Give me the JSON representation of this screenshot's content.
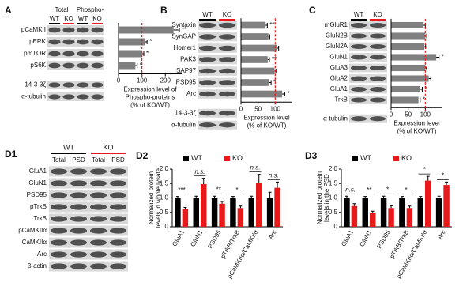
{
  "chart_data": [
    {
      "type": "hbar",
      "panel": "A",
      "headers": [
        "Total",
        "Phospho-"
      ],
      "lanes": [
        "WT",
        "KO",
        "WT",
        "KO"
      ],
      "categories": [
        "pCaMKII",
        "pERK",
        "pmTOR",
        "pS6K"
      ],
      "values": [
        235,
        112,
        100,
        72
      ],
      "errors": [
        25,
        10,
        8,
        8
      ],
      "significance": [
        "**",
        "*",
        "*",
        "*"
      ],
      "loading_controls": [
        "14-3-3ζ",
        "α-tubulin"
      ],
      "xlim": [
        0,
        270
      ],
      "xticks": [
        0,
        100,
        200
      ],
      "reference": 100,
      "color": "#808080",
      "xlabel": [
        "Expression level of",
        "Phospho-proteins",
        "(% of KO/WT)"
      ]
    },
    {
      "type": "hbar",
      "panel": "B",
      "lanes": [
        "WT",
        "KO"
      ],
      "categories": [
        "Syntaxin",
        "SynGAP",
        "Homer1",
        "PAK3",
        "SAP97",
        "PSD95",
        "Arc"
      ],
      "values": [
        72,
        80,
        105,
        78,
        98,
        82,
        120
      ],
      "errors": [
        5,
        4,
        5,
        5,
        4,
        6,
        8
      ],
      "significance": [
        "**",
        null,
        null,
        "**",
        null,
        "*",
        "*"
      ],
      "loading_controls": [
        "14-3-3ζ",
        "α-tubulin"
      ],
      "xlim": [
        0,
        150
      ],
      "xticks": [
        0,
        50,
        100
      ],
      "reference": 100,
      "color": "#808080",
      "xlabel": [
        "Expression level",
        "(% of KO/WT)"
      ]
    },
    {
      "type": "hbar",
      "panel": "C",
      "lanes": [
        "WT",
        "KO"
      ],
      "categories": [
        "mGluR1",
        "GluN2B",
        "GluN2A",
        "GluN1",
        "GluA3",
        "GluA2",
        "GluA1",
        "TrkB"
      ],
      "values": [
        95,
        100,
        97,
        132,
        100,
        110,
        85,
        80
      ],
      "errors": [
        5,
        4,
        4,
        8,
        4,
        6,
        6,
        5
      ],
      "significance": [
        null,
        null,
        null,
        "*",
        null,
        null,
        "*",
        "*"
      ],
      "loading_controls": [
        "α-tubulin"
      ],
      "xlim": [
        0,
        150
      ],
      "xticks": [
        0,
        50,
        100
      ],
      "reference": 100,
      "color": "#808080",
      "xlabel": [
        "Expression level",
        "(% of KO/WT)"
      ]
    },
    {
      "type": "grouped_bar",
      "panel": "D2",
      "ylabel": [
        "Normalized protein",
        "levels in whole lysate"
      ],
      "categories": [
        "GluA1",
        "GluN1",
        "PSD95",
        "pTrkB/TrkB",
        "pCaMKIIα/CaMKIIα",
        "Arc"
      ],
      "series": [
        {
          "name": "WT",
          "color": "#000000",
          "values": [
            1,
            1,
            1,
            1,
            1,
            1
          ],
          "errors": [
            0.05,
            0.06,
            0.06,
            0.05,
            0.06,
            0.2
          ]
        },
        {
          "name": "KO",
          "color": "#e8191b",
          "values": [
            0.62,
            1.48,
            0.8,
            0.65,
            1.52,
            1.35
          ],
          "errors": [
            0.05,
            0.2,
            0.08,
            0.07,
            0.3,
            0.2
          ]
        }
      ],
      "significance": [
        "***",
        "n.s.",
        "**",
        "*",
        "n.s.",
        "n.s."
      ],
      "ylim": [
        0,
        2
      ],
      "yticks": [
        0,
        0.5,
        {
          "value": 1,
          "label": "1.0"
        },
        1.5,
        {
          "value": 2,
          "label": "2.0"
        }
      ]
    },
    {
      "type": "grouped_bar",
      "panel": "D3",
      "ylabel": [
        "Normalized protein",
        "levels in the PSD"
      ],
      "categories": [
        "GluA1",
        "GluN1",
        "PSD95",
        "pTrkB/TrkB",
        "pCaMKIIα/CaMKIIα",
        "Arc"
      ],
      "series": [
        {
          "name": "WT",
          "color": "#000000",
          "values": [
            1,
            1,
            1,
            1,
            1,
            1
          ],
          "errors": [
            0.06,
            0.05,
            0.06,
            0.05,
            0.05,
            0.06
          ]
        },
        {
          "name": "KO",
          "color": "#e8191b",
          "values": [
            0.72,
            0.48,
            0.65,
            0.65,
            1.6,
            1.45
          ],
          "errors": [
            0.08,
            0.06,
            0.08,
            0.07,
            0.15,
            0.1
          ]
        }
      ],
      "significance": [
        "n.s.",
        "**",
        "*",
        "*",
        "*",
        "*"
      ],
      "ylim": [
        0,
        2
      ],
      "yticks": [
        0,
        0.5,
        {
          "value": 1,
          "label": "1.0"
        },
        1.5,
        {
          "value": 2,
          "label": "2.0"
        }
      ]
    }
  ],
  "blot_panel": {
    "panel": "D1",
    "groups": [
      "WT",
      "KO"
    ],
    "lanes": [
      "Total",
      "PSD",
      "Total",
      "PSD"
    ],
    "rows": [
      "GluA1",
      "GluN1",
      "PSD95",
      "pTrkB",
      "TrkB",
      "pCaMKIIα",
      "CaMKIIα",
      "Arc",
      "β-actin"
    ]
  }
}
